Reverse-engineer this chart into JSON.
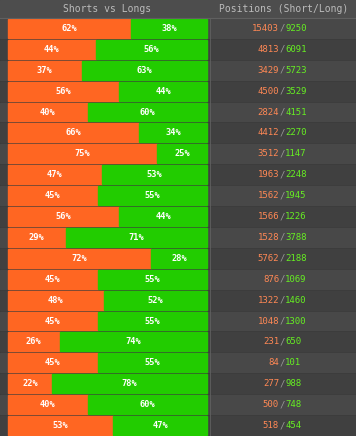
{
  "title_left": "Shorts vs Longs",
  "title_right": "Positions (Short/Long)",
  "background_color": "#3a3a3a",
  "header_bg": "#4d4d4d",
  "row_bg_even": "#484848",
  "row_bg_odd": "#404040",
  "gap_color": "#2a2a2a",
  "orange_color": "#FF6622",
  "green_color": "#22CC00",
  "text_color_white": "#FFFFFF",
  "text_color_orange": "#FF8855",
  "text_color_green": "#66EE22",
  "text_color_slash": "#999999",
  "text_color_header": "#BBBBBB",
  "rows": [
    {
      "short_pct": 62,
      "long_pct": 38,
      "short_pos": "15403",
      "long_pos": "9250"
    },
    {
      "short_pct": 44,
      "long_pct": 56,
      "short_pos": "4813",
      "long_pos": "6091"
    },
    {
      "short_pct": 37,
      "long_pct": 63,
      "short_pos": "3429",
      "long_pos": "5723"
    },
    {
      "short_pct": 56,
      "long_pct": 44,
      "short_pos": "4500",
      "long_pos": "3529"
    },
    {
      "short_pct": 40,
      "long_pct": 60,
      "short_pos": "2824",
      "long_pos": "4151"
    },
    {
      "short_pct": 66,
      "long_pct": 34,
      "short_pos": "4412",
      "long_pos": "2270"
    },
    {
      "short_pct": 75,
      "long_pct": 25,
      "short_pos": "3512",
      "long_pos": "1147"
    },
    {
      "short_pct": 47,
      "long_pct": 53,
      "short_pos": "1963",
      "long_pos": "2248"
    },
    {
      "short_pct": 45,
      "long_pct": 55,
      "short_pos": "1562",
      "long_pos": "1945"
    },
    {
      "short_pct": 56,
      "long_pct": 44,
      "short_pos": "1566",
      "long_pos": "1226"
    },
    {
      "short_pct": 29,
      "long_pct": 71,
      "short_pos": "1528",
      "long_pos": "3788"
    },
    {
      "short_pct": 72,
      "long_pct": 28,
      "short_pos": "5762",
      "long_pos": "2188"
    },
    {
      "short_pct": 45,
      "long_pct": 55,
      "short_pos": "876",
      "long_pos": "1069"
    },
    {
      "short_pct": 48,
      "long_pct": 52,
      "short_pos": "1322",
      "long_pos": "1460"
    },
    {
      "short_pct": 45,
      "long_pct": 55,
      "short_pos": "1048",
      "long_pos": "1300"
    },
    {
      "short_pct": 26,
      "long_pct": 74,
      "short_pos": "231",
      "long_pos": "650"
    },
    {
      "short_pct": 45,
      "long_pct": 55,
      "short_pos": "84",
      "long_pos": "101"
    },
    {
      "short_pct": 22,
      "long_pct": 78,
      "short_pos": "277",
      "long_pos": "988"
    },
    {
      "short_pct": 40,
      "long_pct": 60,
      "short_pos": "500",
      "long_pos": "748"
    },
    {
      "short_pct": 53,
      "long_pct": 47,
      "short_pos": "518",
      "long_pos": "454"
    }
  ]
}
